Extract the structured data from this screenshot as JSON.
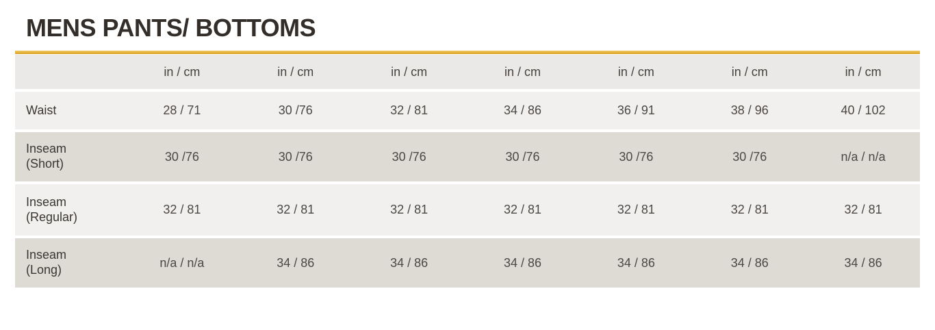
{
  "title": "MENS PANTS/ BOTTOMS",
  "colors": {
    "accent_gold": "#DFA92F",
    "header_row_bg": "#EAE9E7",
    "light_row_bg": "#F1F0EE",
    "dark_row_bg": "#DEDAD4",
    "title_text": "#332E2A",
    "cell_text": "#4B4744"
  },
  "table": {
    "unit_label": "in / cm",
    "rows": [
      {
        "label": "Waist",
        "values": [
          "28 / 71",
          "30 /76",
          "32 / 81",
          "34 / 86",
          "36 / 91",
          "38 / 96",
          "40 / 102"
        ]
      },
      {
        "label": "Inseam\n(Short)",
        "values": [
          "30 /76",
          "30 /76",
          "30 /76",
          "30 /76",
          "30 /76",
          "30 /76",
          "n/a / n/a"
        ]
      },
      {
        "label": "Inseam\n(Regular)",
        "values": [
          "32 / 81",
          "32 / 81",
          "32 / 81",
          "32 / 81",
          "32 / 81",
          "32 / 81",
          "32 / 81"
        ]
      },
      {
        "label": "Inseam\n(Long)",
        "values": [
          "n/a / n/a",
          "34 / 86",
          "34 / 86",
          "34 / 86",
          "34 / 86",
          "34 / 86",
          "34 / 86"
        ]
      }
    ]
  }
}
